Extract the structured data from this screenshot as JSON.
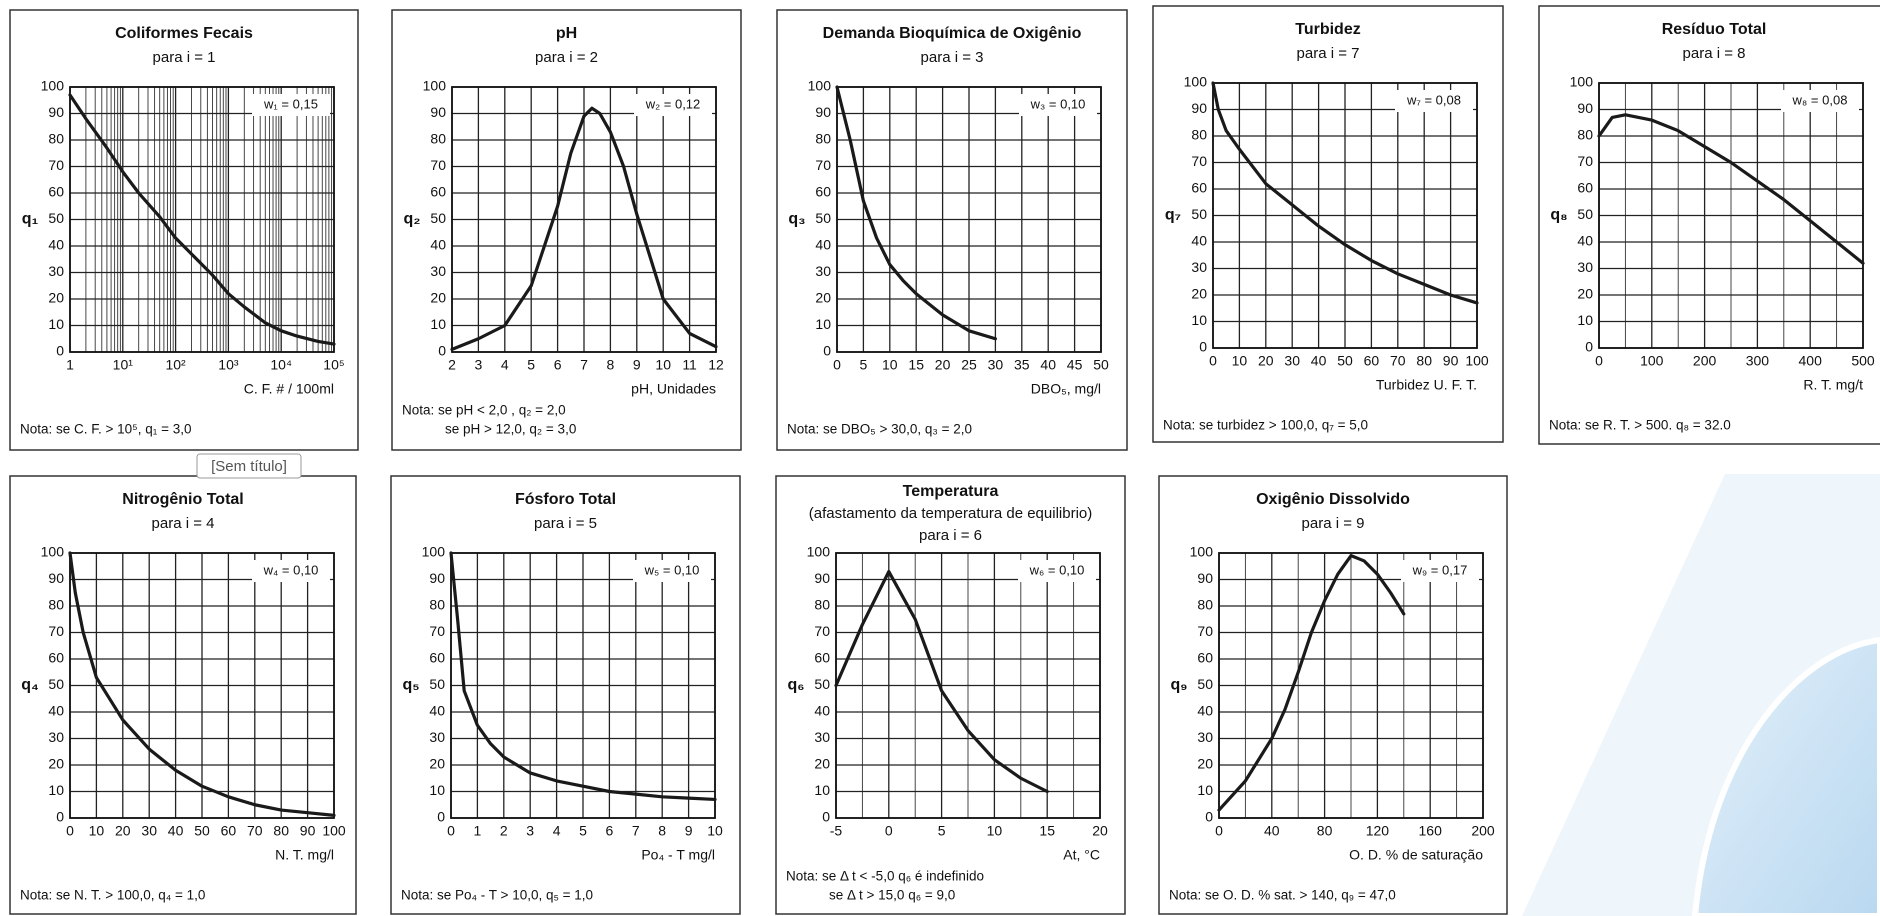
{
  "tooltip": "[Sem título]",
  "chart_data": [
    {
      "type": "line",
      "title": "Coliformes Fecais",
      "subtitle": [
        "para i = 1"
      ],
      "y_label": "q₁",
      "x_label": "C. F. # / 100ml",
      "annotation": "w₁ = 0,15",
      "note": [
        "Nota:  se C. F. > 10⁵, q₁ = 3,0"
      ],
      "xscale": "log",
      "color": "#1a1a1a",
      "grid": true,
      "x": [
        1,
        2,
        5,
        10,
        20,
        50,
        100,
        200,
        500,
        1000,
        2000,
        5000,
        10000,
        20000,
        50000,
        100000
      ],
      "values": [
        97,
        88,
        77,
        68,
        60,
        51,
        43,
        37,
        29,
        22,
        17,
        11,
        8,
        6,
        4,
        3
      ],
      "xlim": [
        1,
        100000
      ],
      "ylim": [
        0,
        100
      ],
      "xticks": [
        1,
        {
          "value": 10,
          "label": "10¹"
        },
        {
          "value": 100,
          "label": "10²"
        },
        {
          "value": 1000,
          "label": "10³"
        },
        {
          "value": 10000,
          "label": "10⁴"
        },
        {
          "value": 100000,
          "label": "10⁵"
        }
      ],
      "xminor": [
        2,
        3,
        4,
        5,
        6,
        7,
        8,
        9,
        20,
        30,
        40,
        50,
        60,
        70,
        80,
        90,
        200,
        300,
        400,
        500,
        600,
        700,
        800,
        900,
        2000,
        3000,
        4000,
        5000,
        6000,
        7000,
        8000,
        9000,
        20000,
        30000,
        40000,
        50000,
        60000,
        70000,
        80000,
        90000
      ],
      "yticks": [
        0,
        10,
        20,
        30,
        40,
        50,
        60,
        70,
        80,
        90,
        100
      ]
    },
    {
      "type": "line",
      "title": "pH",
      "subtitle": [
        "para i = 2"
      ],
      "y_label": "q₂",
      "x_label": "pH, Unidades",
      "annotation": "w₂ = 0,12",
      "note": [
        "Nota:  se pH < 2,0 ,  q₂ = 2,0",
        "se pH > 12,0,  q₂ = 3,0"
      ],
      "color": "#1a1a1a",
      "grid": true,
      "x": [
        2,
        3,
        4,
        5,
        6,
        6.5,
        7,
        7.3,
        7.6,
        8,
        8.5,
        9,
        10,
        11,
        12
      ],
      "values": [
        1,
        5,
        10,
        25,
        55,
        75,
        89,
        92,
        90,
        83,
        70,
        52,
        20,
        7,
        2
      ],
      "xlim": [
        2,
        12
      ],
      "ylim": [
        0,
        100
      ],
      "xticks": [
        2,
        3,
        4,
        5,
        6,
        7,
        8,
        9,
        10,
        11,
        12
      ],
      "yticks": [
        0,
        10,
        20,
        30,
        40,
        50,
        60,
        70,
        80,
        90,
        100
      ]
    },
    {
      "type": "line",
      "title": "Demanda Bioquímica de Oxigênio",
      "subtitle": [
        "para i = 3"
      ],
      "y_label": "q₃",
      "x_label": "DBO₅, mg/l",
      "annotation": "w₃ = 0,10",
      "note": [
        "Nota:  se DBO₅ > 30,0, q₃ = 2,0"
      ],
      "color": "#1a1a1a",
      "grid": true,
      "x": [
        0,
        1,
        2.5,
        5,
        7.5,
        10,
        12.5,
        15,
        20,
        25,
        30
      ],
      "values": [
        100,
        92,
        80,
        57,
        43,
        33,
        27,
        22,
        14,
        8,
        5
      ],
      "xlim": [
        0,
        50
      ],
      "ylim": [
        0,
        100
      ],
      "xticks": [
        0,
        5,
        10,
        15,
        20,
        25,
        30,
        35,
        40,
        45,
        50
      ],
      "yticks": [
        0,
        10,
        20,
        30,
        40,
        50,
        60,
        70,
        80,
        90,
        100
      ]
    },
    {
      "type": "line",
      "title": "Turbidez",
      "subtitle": [
        "para i = 7"
      ],
      "y_label": "q₇",
      "x_label": "Turbidez U. F. T.",
      "annotation": "w₇ = 0,08",
      "note": [
        "Nota:  se turbidez > 100,0, q₇ = 5,0"
      ],
      "color": "#1a1a1a",
      "grid": true,
      "x": [
        0,
        2,
        5,
        10,
        20,
        30,
        40,
        50,
        60,
        70,
        80,
        90,
        100
      ],
      "values": [
        100,
        90,
        82,
        75,
        62,
        54,
        46,
        39,
        33,
        28,
        24,
        20,
        17
      ],
      "xlim": [
        0,
        100
      ],
      "ylim": [
        0,
        100
      ],
      "xticks": [
        0,
        10,
        20,
        30,
        40,
        50,
        60,
        70,
        80,
        90,
        100
      ],
      "yticks": [
        0,
        10,
        20,
        30,
        40,
        50,
        60,
        70,
        80,
        90,
        100
      ]
    },
    {
      "type": "line",
      "title": "Resíduo Total",
      "subtitle": [
        "para i = 8"
      ],
      "y_label": "q₈",
      "x_label": "R. T. mg/t",
      "annotation": "w₈ = 0,08",
      "note": [
        "Nota:  se R. T. > 500. q₈ = 32.0"
      ],
      "color": "#1a1a1a",
      "grid": true,
      "x": [
        0,
        25,
        50,
        100,
        150,
        200,
        250,
        300,
        350,
        400,
        450,
        500
      ],
      "values": [
        80,
        87,
        88,
        86,
        82,
        76,
        70,
        63,
        56,
        48,
        40,
        32
      ],
      "xlim": [
        0,
        500
      ],
      "ylim": [
        0,
        100
      ],
      "xticks": [
        0,
        100,
        200,
        300,
        400,
        500
      ],
      "xminor": [
        50,
        150,
        250,
        350,
        450
      ],
      "yticks": [
        0,
        10,
        20,
        30,
        40,
        50,
        60,
        70,
        80,
        90,
        100
      ]
    },
    {
      "type": "line",
      "title": "Nitrogênio Total",
      "subtitle": [
        "para i = 4"
      ],
      "y_label": "q₄",
      "x_label": "N. T. mg/l",
      "annotation": "w₄ = 0,10",
      "note": [
        "Nota:  se N. T. > 100,0, q₄ = 1,0"
      ],
      "color": "#1a1a1a",
      "grid": true,
      "x": [
        0,
        2,
        5,
        10,
        20,
        30,
        40,
        50,
        60,
        70,
        80,
        90,
        100
      ],
      "values": [
        100,
        85,
        70,
        53,
        37,
        26,
        18,
        12,
        8,
        5,
        3,
        2,
        1
      ],
      "xlim": [
        0,
        100
      ],
      "ylim": [
        0,
        100
      ],
      "xticks": [
        0,
        10,
        20,
        30,
        40,
        50,
        60,
        70,
        80,
        90,
        100
      ],
      "yticks": [
        0,
        10,
        20,
        30,
        40,
        50,
        60,
        70,
        80,
        90,
        100
      ]
    },
    {
      "type": "line",
      "title": "Fósforo Total",
      "subtitle": [
        "para i = 5"
      ],
      "y_label": "q₅",
      "x_label": "Po₄ - T mg/l",
      "annotation": "w₅ = 0,10",
      "note": [
        "Nota:  se Po₄ - T > 10,0, q₅ = 1,0"
      ],
      "color": "#1a1a1a",
      "grid": true,
      "x": [
        0,
        0.25,
        0.5,
        1,
        1.5,
        2,
        3,
        4,
        5,
        6,
        7,
        8,
        9,
        10
      ],
      "values": [
        100,
        75,
        48,
        35,
        28,
        23,
        17,
        14,
        12,
        10,
        9,
        8,
        7.5,
        7
      ],
      "xlim": [
        0,
        10
      ],
      "ylim": [
        0,
        100
      ],
      "xticks": [
        0,
        1,
        2,
        3,
        4,
        5,
        6,
        7,
        8,
        9,
        10
      ],
      "yticks": [
        0,
        10,
        20,
        30,
        40,
        50,
        60,
        70,
        80,
        90,
        100
      ]
    },
    {
      "type": "line",
      "title": "Temperatura",
      "subtitle": [
        "(afastamento da temperatura de equilibrio)",
        "para i = 6"
      ],
      "y_label": "q₆",
      "x_label": "At, °C",
      "annotation": "w₆ = 0,10",
      "note": [
        "Nota:  se Δ t < -5,0 q₆ é indefinido",
        "se Δ t > 15,0 q₆ = 9,0"
      ],
      "color": "#1a1a1a",
      "grid": true,
      "x": [
        -5,
        -2.5,
        0,
        2.5,
        5,
        7.5,
        10,
        12.5,
        15
      ],
      "values": [
        50,
        73,
        93,
        75,
        48,
        33,
        22,
        15,
        10
      ],
      "xlim": [
        -5,
        20
      ],
      "ylim": [
        0,
        100
      ],
      "xticks": [
        -5,
        0,
        5,
        10,
        15,
        20
      ],
      "xminor": [
        -2.5,
        2.5,
        7.5,
        12.5,
        17.5
      ],
      "yticks": [
        0,
        10,
        20,
        30,
        40,
        50,
        60,
        70,
        80,
        90,
        100
      ]
    },
    {
      "type": "line",
      "title": "Oxigênio Dissolvido",
      "subtitle": [
        "para i = 9"
      ],
      "y_label": "q₉",
      "x_label": "O. D. % de saturação",
      "annotation": "w₉ = 0,17",
      "note": [
        "Nota:  se O. D. % sat. > 140, q₉ = 47,0"
      ],
      "color": "#1a1a1a",
      "grid": true,
      "x": [
        0,
        20,
        40,
        50,
        60,
        70,
        80,
        90,
        100,
        110,
        120,
        130,
        140
      ],
      "values": [
        3,
        14,
        30,
        41,
        55,
        70,
        82,
        92,
        99,
        97,
        92,
        85,
        77
      ],
      "xlim": [
        0,
        200
      ],
      "ylim": [
        0,
        100
      ],
      "xticks": [
        0,
        40,
        80,
        120,
        160,
        200
      ],
      "xminor": [
        20,
        60,
        100,
        140,
        180
      ],
      "yticks": [
        0,
        10,
        20,
        30,
        40,
        50,
        60,
        70,
        80,
        90,
        100
      ]
    }
  ]
}
